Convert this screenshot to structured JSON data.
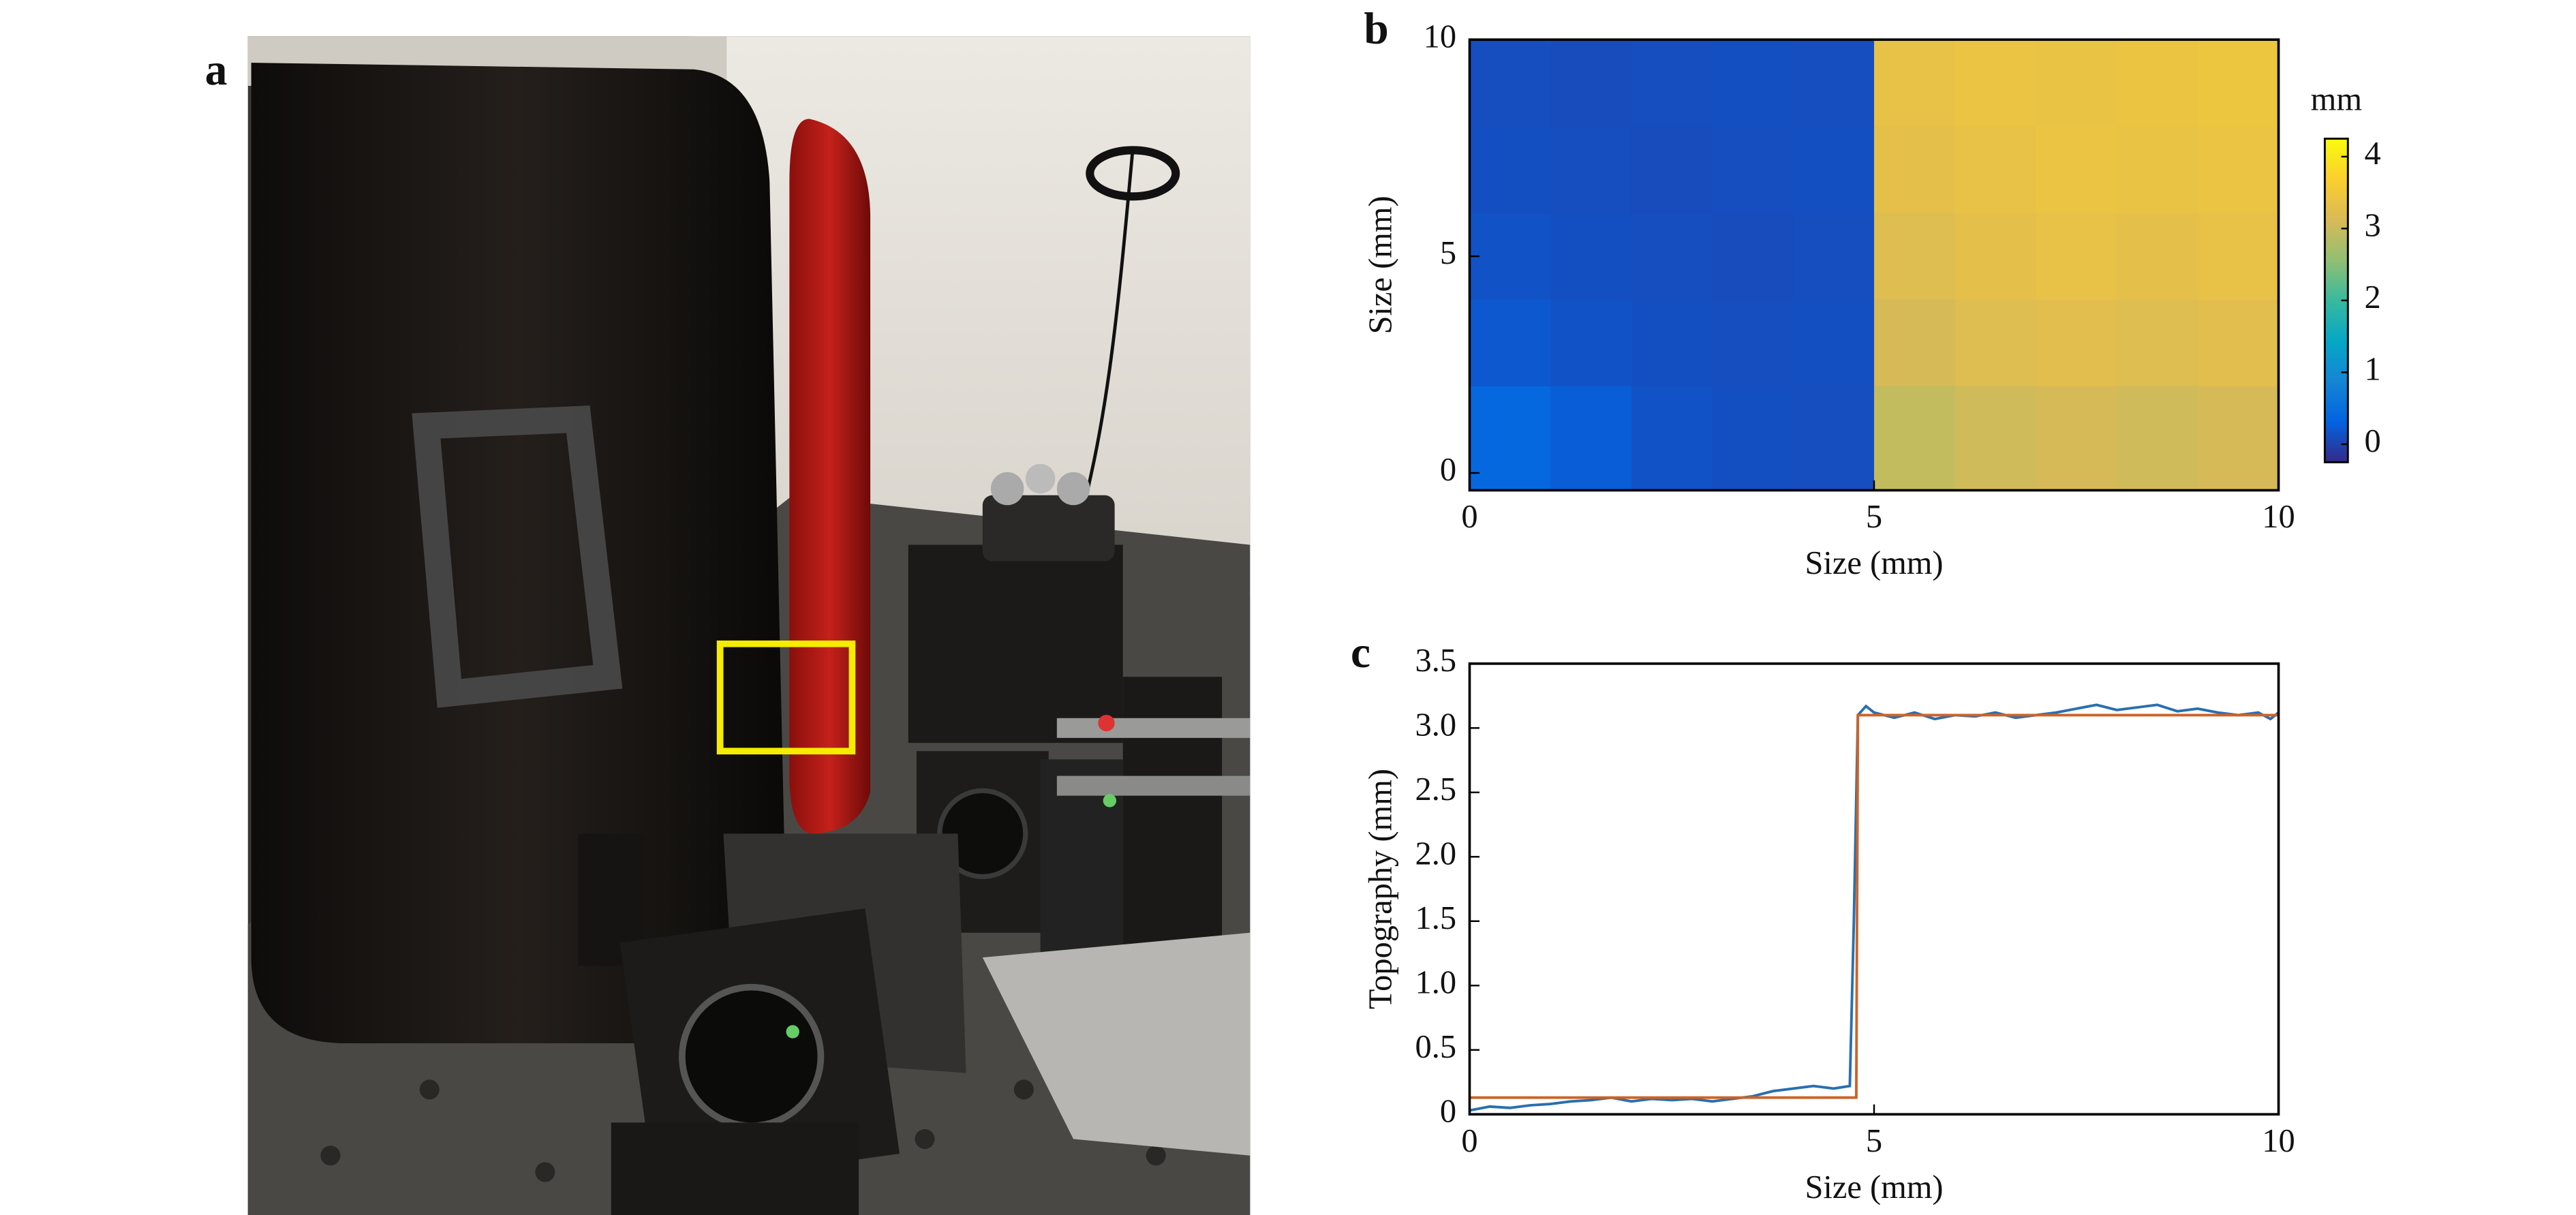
{
  "figure": {
    "panel_labels": [
      "a",
      "b",
      "c"
    ]
  },
  "chart_data": [
    {
      "type": "heatmap",
      "xlabel": "Size (mm)",
      "ylabel": "Size (mm)",
      "colorbar_label": "mm",
      "x": [
        0.5,
        1.5,
        2.5,
        3.5,
        4.5,
        5.5,
        6.5,
        7.5,
        8.5,
        9.5
      ],
      "y": [
        9,
        7,
        5,
        3,
        1
      ],
      "z": [
        [
          0.1,
          0.08,
          0.1,
          0.12,
          0.1,
          3.35,
          3.4,
          3.38,
          3.42,
          3.45
        ],
        [
          0.12,
          0.1,
          0.08,
          0.1,
          0.12,
          3.3,
          3.35,
          3.4,
          3.38,
          3.4
        ],
        [
          0.15,
          0.12,
          0.1,
          0.08,
          0.1,
          3.2,
          3.3,
          3.35,
          3.3,
          3.35
        ],
        [
          0.2,
          0.15,
          0.12,
          0.1,
          0.12,
          3.1,
          3.2,
          3.25,
          3.2,
          3.25
        ],
        [
          0.4,
          0.25,
          0.15,
          0.12,
          0.1,
          2.95,
          3.05,
          3.1,
          3.05,
          3.1
        ]
      ],
      "xlim": [
        0,
        10
      ],
      "ylim": [
        -0.4,
        10
      ],
      "xticks": [
        0,
        5,
        10
      ],
      "yticks": [
        0,
        5,
        10
      ],
      "zlim": [
        -0.25,
        4.25
      ],
      "zticks": [
        0,
        1,
        2,
        3,
        4
      ],
      "colorscale": [
        "#352a87",
        "#0363e1",
        "#1485d4",
        "#06a7c6",
        "#38b99e",
        "#92bf73",
        "#d9ba56",
        "#fcce2e",
        "#f9fb0e"
      ]
    },
    {
      "type": "line",
      "xlabel": "Size (mm)",
      "ylabel": "Topography (mm)",
      "xlim": [
        0,
        10
      ],
      "ylim": [
        0,
        3.5
      ],
      "xticks": [
        0,
        5,
        10
      ],
      "yticks": [
        0,
        0.5,
        {
          "value": 1,
          "label": "1.0"
        },
        1.5,
        {
          "value": 2,
          "label": "2.0"
        },
        2.5,
        {
          "value": 3,
          "label": "3.0"
        },
        3.5
      ],
      "series": [
        {
          "color": "#2a6fb0",
          "x": [
            0,
            0.25,
            0.5,
            0.75,
            1,
            1.25,
            1.5,
            1.75,
            2,
            2.25,
            2.5,
            2.75,
            3,
            3.25,
            3.5,
            3.75,
            4,
            4.25,
            4.5,
            4.7,
            4.75,
            4.8,
            4.9,
            5,
            5.25,
            5.5,
            5.75,
            6,
            6.25,
            6.5,
            6.75,
            7,
            7.25,
            7.5,
            7.75,
            8,
            8.25,
            8.5,
            8.75,
            9,
            9.25,
            9.5,
            9.75,
            9.9,
            10
          ],
          "values": [
            0.03,
            0.06,
            0.05,
            0.07,
            0.08,
            0.1,
            0.11,
            0.13,
            0.1,
            0.12,
            0.11,
            0.12,
            0.1,
            0.12,
            0.14,
            0.18,
            0.2,
            0.22,
            0.2,
            0.22,
            1.5,
            3.1,
            3.17,
            3.12,
            3.08,
            3.12,
            3.07,
            3.1,
            3.09,
            3.12,
            3.08,
            3.1,
            3.12,
            3.15,
            3.18,
            3.14,
            3.16,
            3.18,
            3.13,
            3.15,
            3.12,
            3.1,
            3.12,
            3.07,
            3.12
          ]
        },
        {
          "color": "#cc6328",
          "x": [
            0,
            4.78,
            4.8,
            10
          ],
          "values": [
            0.13,
            0.13,
            3.1,
            3.1
          ]
        }
      ]
    }
  ]
}
